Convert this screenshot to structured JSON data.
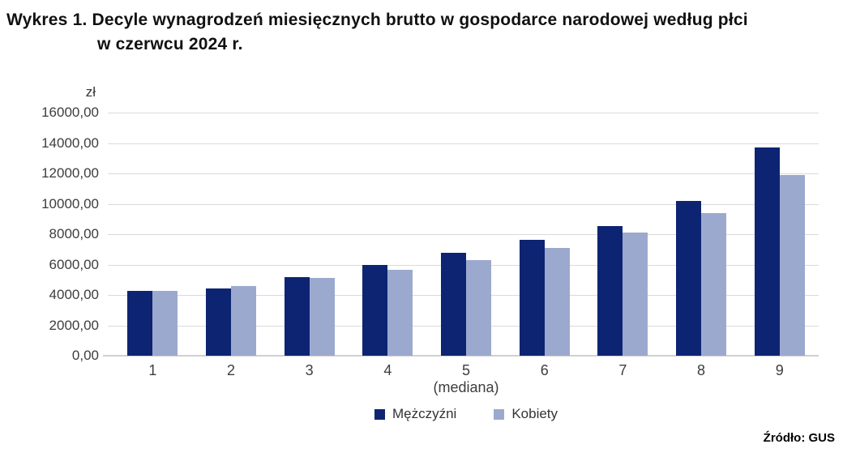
{
  "header": {
    "title_line1": "Wykres 1. Decyle wynagrodzeń miesięcznych brutto w gospodarce narodowej według płci",
    "title_line2": "w czerwcu 2024 r."
  },
  "chart_data": {
    "type": "bar",
    "title": "Wykres 1. Decyle wynagrodzeń miesięcznych brutto w gospodarce narodowej według płci w czerwcu 2024 r.",
    "unit_label": "zł",
    "categories": [
      "1",
      "2",
      "3",
      "4",
      "5",
      "6",
      "7",
      "8",
      "9"
    ],
    "x_sublabels": {
      "5": "(mediana)"
    },
    "y_ticks": [
      "16000,00",
      "14000,00",
      "12000,00",
      "10000,00",
      "8000,00",
      "6000,00",
      "4000,00",
      "2000,00",
      "0,00"
    ],
    "ylim": [
      0,
      16000
    ],
    "grid": true,
    "legend_position": "bottom",
    "series": [
      {
        "name": "Mężczyźni",
        "key": "men",
        "color": "#0d2472",
        "values": [
          4250,
          4450,
          5150,
          5950,
          6800,
          7650,
          8550,
          10200,
          13700
        ]
      },
      {
        "name": "Kobiety",
        "key": "women",
        "color": "#9ca9ce",
        "values": [
          4250,
          4600,
          5100,
          5650,
          6300,
          7100,
          8100,
          9400,
          11900
        ]
      }
    ]
  },
  "footer": {
    "source": "Źródło: GUS"
  }
}
